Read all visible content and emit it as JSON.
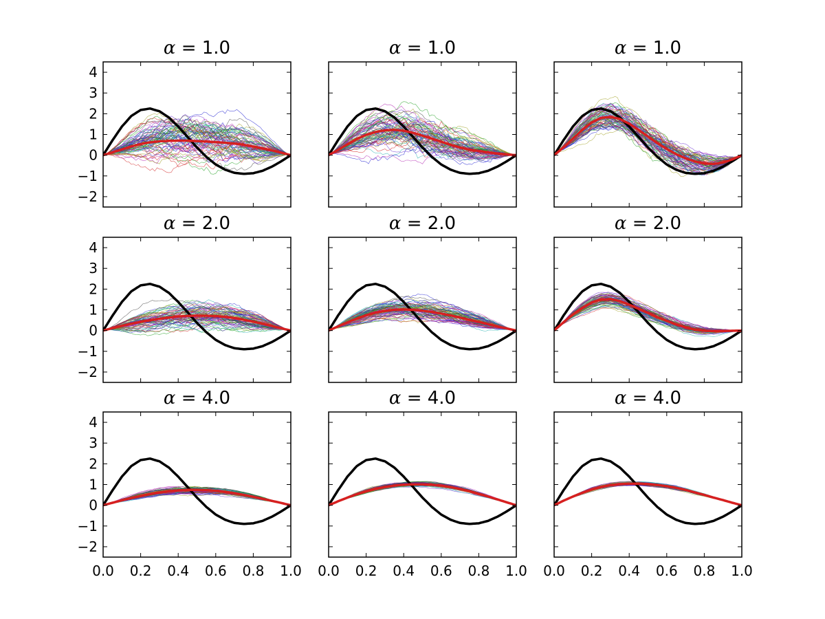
{
  "figure": {
    "rows": 3,
    "cols": 3,
    "xlim": [
      0.0,
      1.0
    ],
    "ylim": [
      -2.5,
      4.5
    ],
    "xticks": [
      0.0,
      0.2,
      0.4,
      0.6,
      0.8,
      1.0
    ],
    "xtick_labels": [
      "0.0",
      "0.2",
      "0.4",
      "0.6",
      "0.8",
      "1.0"
    ],
    "yticks": [
      4,
      3,
      2,
      1,
      0,
      -1,
      -2
    ],
    "ytick_labels": [
      "4",
      "3",
      "2",
      "1",
      "0",
      "−1",
      "−2"
    ],
    "title_symbol": "α",
    "row_alphas": [
      "1.0",
      "2.0",
      "4.0"
    ],
    "colors": {
      "true_function": "#000000",
      "mean_curve": "#d62020",
      "sample_palette": [
        "#1f1fd0",
        "#d01f1f",
        "#1f9f1f",
        "#9f9f1f",
        "#1fafaf",
        "#af1faf",
        "#404040",
        "#6a2fd0"
      ]
    },
    "grid": false,
    "legend": "none"
  },
  "chart_data": {
    "type": "line",
    "description_free": true,
    "true_function": {
      "x": [
        0.0,
        0.05,
        0.1,
        0.15,
        0.2,
        0.25,
        0.3,
        0.35,
        0.4,
        0.45,
        0.5,
        0.55,
        0.6,
        0.65,
        0.7,
        0.75,
        0.8,
        0.85,
        0.9,
        0.95,
        1.0
      ],
      "y": [
        0.0,
        0.72,
        1.38,
        1.89,
        2.18,
        2.25,
        2.12,
        1.82,
        1.38,
        0.88,
        0.37,
        -0.08,
        -0.45,
        -0.7,
        -0.85,
        -0.9,
        -0.87,
        -0.75,
        -0.55,
        -0.29,
        0.0
      ]
    },
    "panels": [
      {
        "alpha": "1.0",
        "mean": [
          0,
          0.14,
          0.28,
          0.42,
          0.54,
          0.62,
          0.67,
          0.69,
          0.7,
          0.7,
          0.68,
          0.66,
          0.63,
          0.6,
          0.56,
          0.5,
          0.42,
          0.33,
          0.23,
          0.12,
          0
        ],
        "spread": [
          0,
          0.45,
          0.65,
          0.8,
          0.9,
          0.95,
          1.0,
          1.0,
          1.0,
          1.0,
          1.0,
          1.0,
          1.0,
          0.95,
          0.95,
          0.9,
          0.85,
          0.75,
          0.6,
          0.45,
          0
        ],
        "jitter": 0.1
      },
      {
        "alpha": "1.0",
        "mean": [
          0,
          0.25,
          0.52,
          0.78,
          0.98,
          1.12,
          1.2,
          1.22,
          1.18,
          1.08,
          0.94,
          0.8,
          0.65,
          0.5,
          0.37,
          0.27,
          0.2,
          0.14,
          0.08,
          0.04,
          0
        ],
        "spread": [
          0,
          0.4,
          0.6,
          0.72,
          0.8,
          0.85,
          0.85,
          0.85,
          0.85,
          0.85,
          0.85,
          0.8,
          0.75,
          0.72,
          0.7,
          0.68,
          0.62,
          0.55,
          0.45,
          0.3,
          0
        ],
        "jitter": 0.09
      },
      {
        "alpha": "1.0",
        "mean": [
          0,
          0.38,
          0.8,
          1.22,
          1.58,
          1.8,
          1.85,
          1.75,
          1.52,
          1.22,
          0.9,
          0.58,
          0.3,
          0.05,
          -0.15,
          -0.3,
          -0.4,
          -0.42,
          -0.35,
          -0.2,
          0
        ],
        "spread": [
          0,
          0.3,
          0.45,
          0.5,
          0.52,
          0.55,
          0.55,
          0.55,
          0.55,
          0.55,
          0.55,
          0.55,
          0.55,
          0.55,
          0.52,
          0.5,
          0.48,
          0.45,
          0.4,
          0.3,
          0
        ],
        "jitter": 0.08
      },
      {
        "alpha": "2.0",
        "mean": [
          0,
          0.12,
          0.23,
          0.33,
          0.42,
          0.5,
          0.57,
          0.63,
          0.68,
          0.71,
          0.72,
          0.72,
          0.7,
          0.66,
          0.6,
          0.52,
          0.43,
          0.33,
          0.22,
          0.11,
          0
        ],
        "spread": [
          0,
          0.2,
          0.32,
          0.4,
          0.46,
          0.5,
          0.52,
          0.52,
          0.52,
          0.52,
          0.52,
          0.52,
          0.5,
          0.5,
          0.48,
          0.46,
          0.42,
          0.36,
          0.3,
          0.2,
          0
        ],
        "jitter": 0.05
      },
      {
        "alpha": "2.0",
        "mean": [
          0,
          0.2,
          0.4,
          0.58,
          0.74,
          0.86,
          0.95,
          1.0,
          1.02,
          1.0,
          0.96,
          0.9,
          0.82,
          0.73,
          0.63,
          0.52,
          0.42,
          0.31,
          0.2,
          0.1,
          0
        ],
        "spread": [
          0,
          0.18,
          0.28,
          0.34,
          0.38,
          0.4,
          0.4,
          0.4,
          0.4,
          0.4,
          0.4,
          0.4,
          0.38,
          0.36,
          0.35,
          0.34,
          0.32,
          0.28,
          0.22,
          0.15,
          0
        ],
        "jitter": 0.04
      },
      {
        "alpha": "2.0",
        "mean": [
          0,
          0.4,
          0.78,
          1.1,
          1.35,
          1.5,
          1.52,
          1.42,
          1.25,
          1.05,
          0.85,
          0.65,
          0.47,
          0.3,
          0.16,
          0.05,
          -0.01,
          -0.03,
          -0.02,
          -0.01,
          0
        ],
        "spread": [
          0,
          0.15,
          0.22,
          0.26,
          0.28,
          0.28,
          0.28,
          0.28,
          0.27,
          0.26,
          0.25,
          0.24,
          0.22,
          0.2,
          0.18,
          0.16,
          0.15,
          0.14,
          0.12,
          0.08,
          0
        ],
        "jitter": 0.03
      },
      {
        "alpha": "4.0",
        "mean": [
          0,
          0.12,
          0.24,
          0.35,
          0.45,
          0.54,
          0.62,
          0.68,
          0.72,
          0.74,
          0.74,
          0.73,
          0.7,
          0.65,
          0.58,
          0.5,
          0.41,
          0.31,
          0.21,
          0.11,
          0
        ],
        "spread": [
          0,
          0.06,
          0.1,
          0.12,
          0.14,
          0.15,
          0.15,
          0.15,
          0.15,
          0.15,
          0.15,
          0.15,
          0.15,
          0.14,
          0.13,
          0.12,
          0.1,
          0.08,
          0.06,
          0.04,
          0
        ],
        "jitter": 0.015
      },
      {
        "alpha": "4.0",
        "mean": [
          0,
          0.19,
          0.37,
          0.53,
          0.67,
          0.79,
          0.88,
          0.95,
          0.99,
          1.01,
          1.01,
          0.99,
          0.95,
          0.88,
          0.79,
          0.68,
          0.55,
          0.42,
          0.28,
          0.14,
          0
        ],
        "spread": [
          0,
          0.04,
          0.06,
          0.08,
          0.09,
          0.1,
          0.1,
          0.1,
          0.1,
          0.1,
          0.1,
          0.1,
          0.1,
          0.1,
          0.09,
          0.08,
          0.07,
          0.06,
          0.05,
          0.03,
          0
        ],
        "jitter": 0.01
      },
      {
        "alpha": "4.0",
        "mean": [
          0,
          0.22,
          0.42,
          0.6,
          0.76,
          0.88,
          0.97,
          1.02,
          1.04,
          1.04,
          1.02,
          0.98,
          0.92,
          0.84,
          0.74,
          0.62,
          0.5,
          0.37,
          0.25,
          0.12,
          0
        ],
        "spread": [
          0,
          0.03,
          0.05,
          0.06,
          0.07,
          0.07,
          0.07,
          0.07,
          0.07,
          0.07,
          0.07,
          0.07,
          0.07,
          0.07,
          0.06,
          0.06,
          0.05,
          0.04,
          0.03,
          0.02,
          0
        ],
        "jitter": 0.008
      }
    ]
  }
}
